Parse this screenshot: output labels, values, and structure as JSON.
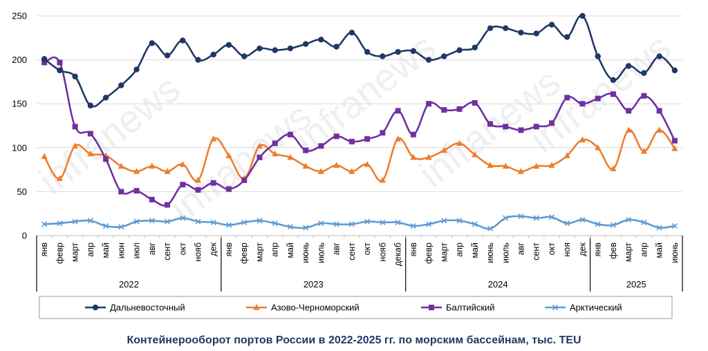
{
  "watermark": "infranews",
  "chart_data": {
    "type": "line",
    "title": "Контейнерооборот портов России в 2022-2025 гг. по морским бассейнам, тыс. TEU",
    "ylim": [
      0,
      250
    ],
    "yticks": [
      "0",
      "50",
      "100",
      "150",
      "200",
      "250"
    ],
    "yticks_values": [
      0,
      50,
      100,
      150,
      200,
      250
    ],
    "categories": [
      "янв",
      "февр",
      "март",
      "апр",
      "май",
      "июн",
      "июл",
      "авг",
      "сент",
      "окт",
      "нояб",
      "дек",
      "янв",
      "февр",
      "март",
      "апр",
      "май",
      "июнь",
      "июль",
      "авг",
      "сент",
      "окт",
      "нояб",
      "декаб",
      "янв",
      "февр",
      "март",
      "апр",
      "май",
      "июнь",
      "июль",
      "авг",
      "сент",
      "окт",
      "ноя",
      "дек",
      "янв",
      "фев",
      "март",
      "апр",
      "май",
      "июнь"
    ],
    "years": [
      {
        "label": "2022",
        "count": 12
      },
      {
        "label": "2023",
        "count": 12
      },
      {
        "label": "2024",
        "count": 12
      },
      {
        "label": "2025",
        "count": 6
      }
    ],
    "legend_position": "bottom",
    "series": [
      {
        "name": "Дальневосточный",
        "color": "#1f3864",
        "marker": "circle",
        "values": [
          201,
          188,
          181,
          148,
          157,
          171,
          189,
          219,
          205,
          222,
          200,
          206,
          217,
          204,
          213,
          211,
          213,
          218,
          223,
          215,
          231,
          209,
          204,
          209,
          210,
          200,
          204,
          211,
          214,
          236,
          236,
          231,
          230,
          240,
          226,
          250,
          204,
          177,
          193,
          185,
          204,
          188
        ]
      },
      {
        "name": "Азово-Черноморский",
        "color": "#ed7d31",
        "marker": "triangle",
        "values": [
          90,
          65,
          102,
          93,
          91,
          79,
          73,
          79,
          73,
          81,
          63,
          110,
          91,
          65,
          102,
          93,
          89,
          79,
          73,
          80,
          73,
          81,
          63,
          110,
          89,
          89,
          97,
          105,
          92,
          80,
          79,
          73,
          79,
          80,
          91,
          109,
          100,
          76,
          120,
          96,
          120,
          99
        ]
      },
      {
        "name": "Балтийский",
        "color": "#7030a0",
        "marker": "square",
        "values": [
          197,
          197,
          124,
          116,
          87,
          50,
          51,
          41,
          35,
          58,
          52,
          60,
          53,
          63,
          89,
          105,
          115,
          97,
          102,
          113,
          107,
          110,
          117,
          142,
          115,
          150,
          143,
          144,
          151,
          127,
          124,
          120,
          124,
          128,
          157,
          150,
          156,
          161,
          142,
          159,
          142,
          108
        ]
      },
      {
        "name": "Арктический",
        "color": "#5b9bd5",
        "marker": "x",
        "values": [
          13,
          14,
          16,
          17,
          11,
          10,
          16,
          17,
          16,
          20,
          16,
          15,
          12,
          15,
          17,
          14,
          10,
          9,
          14,
          13,
          13,
          16,
          15,
          15,
          11,
          13,
          17,
          17,
          13,
          8,
          20,
          22,
          20,
          21,
          14,
          18,
          13,
          12,
          18,
          15,
          9,
          11
        ]
      }
    ]
  }
}
